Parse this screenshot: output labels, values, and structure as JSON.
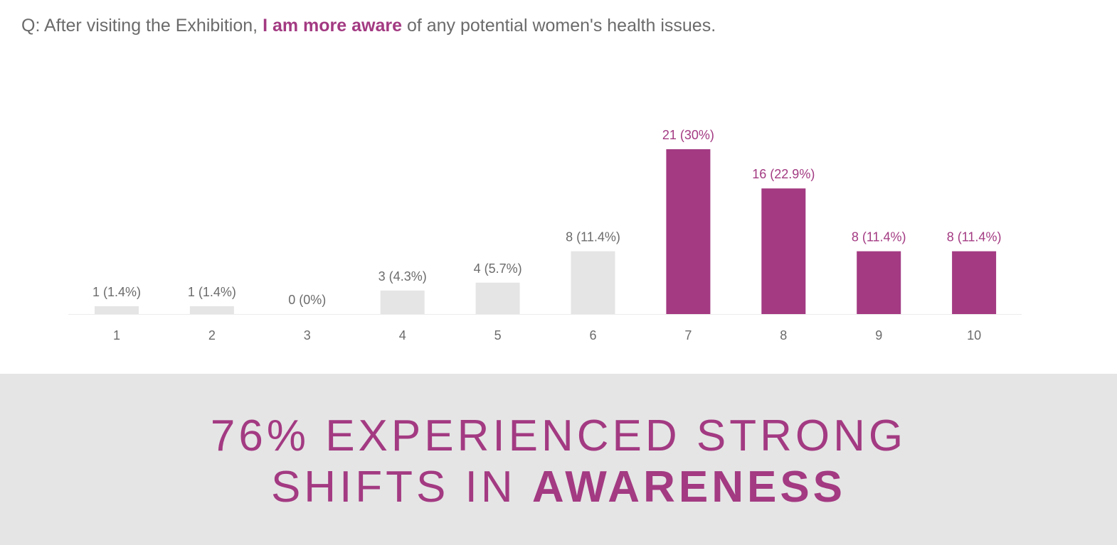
{
  "question": {
    "prefix": "Q: After visiting the Exhibition, ",
    "highlight": "I am more aware",
    "suffix": " of any potential women's health issues."
  },
  "chart_data": {
    "type": "bar",
    "categories": [
      "1",
      "2",
      "3",
      "4",
      "5",
      "6",
      "7",
      "8",
      "9",
      "10"
    ],
    "values": [
      1,
      1,
      0,
      3,
      4,
      8,
      21,
      16,
      8,
      8
    ],
    "data_labels": [
      "1 (1.4%)",
      "1 (1.4%)",
      "0 (0%)",
      "3 (4.3%)",
      "4 (5.7%)",
      "8 (11.4%)",
      "21 (30%)",
      "16 (22.9%)",
      "8 (11.4%)",
      "8 (11.4%)"
    ],
    "highlighted_categories": [
      "7",
      "8",
      "9",
      "10"
    ],
    "ylim": [
      0,
      21
    ],
    "grid": false,
    "colors": {
      "highlight": "#a33a82",
      "muted": "#e5e5e5",
      "label_muted": "#6b6b6b"
    }
  },
  "banner": {
    "line1": "76% EXPERIENCED STRONG",
    "line2_prefix": "SHIFTS IN ",
    "line2_emphasis": "AWARENESS"
  },
  "colors": {
    "accent": "#a33a82",
    "banner_bg": "#e5e5e5",
    "text": "#6b6b6b"
  }
}
